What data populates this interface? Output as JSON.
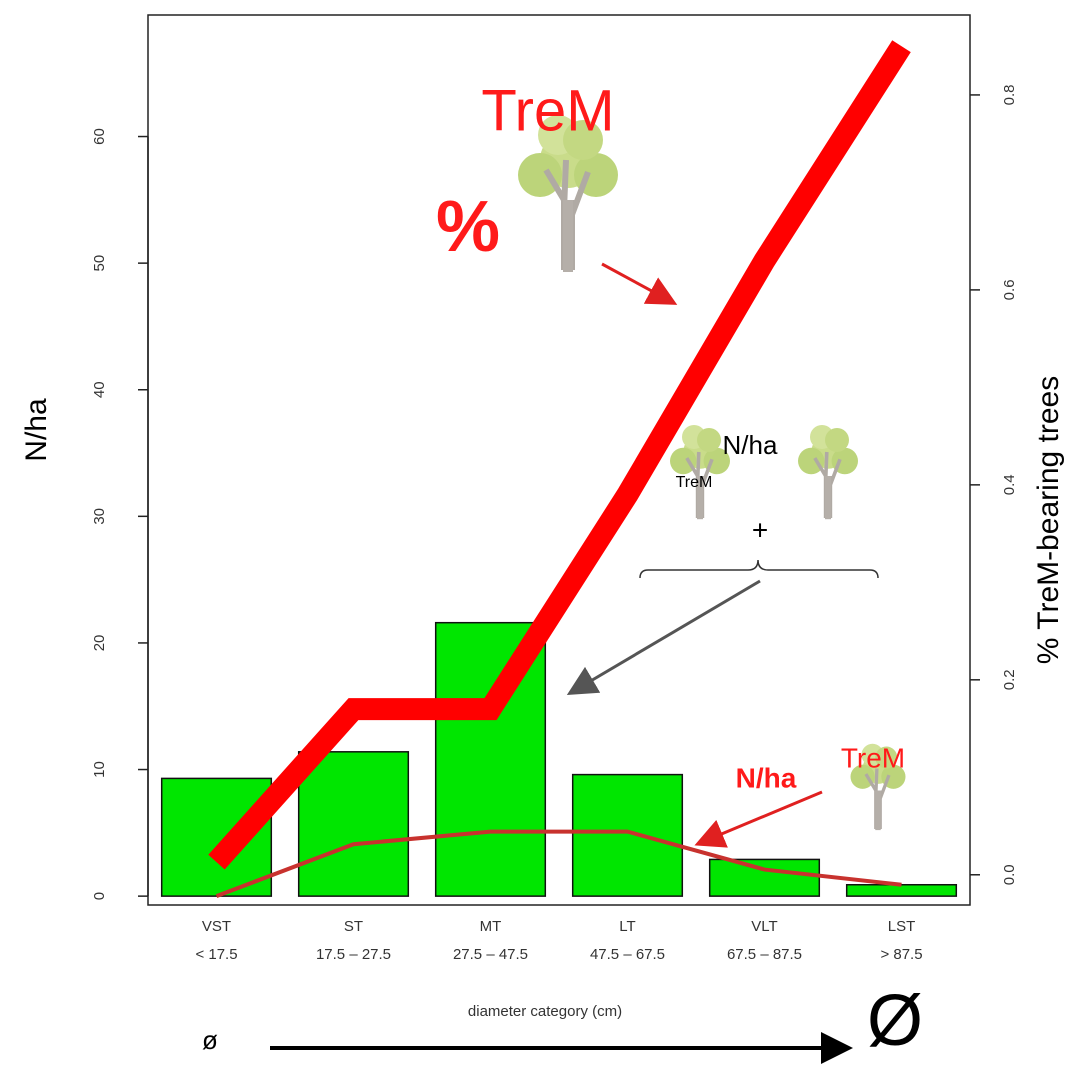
{
  "chart_data": {
    "type": "bar",
    "x_label": "diameter category (cm)",
    "y_label": "N/ha",
    "y2_label": "% TreM-bearing trees",
    "categories": [
      "VST",
      "ST",
      "MT",
      "LT",
      "VLT",
      "LST"
    ],
    "category_ranges": [
      "< 17.5",
      "17.5 – 27.5",
      "27.5 – 47.5",
      "47.5 – 67.5",
      "67.5 – 87.5",
      "> 87.5"
    ],
    "series": [
      {
        "type": "bar",
        "color": "#00e600",
        "values": [
          9.3,
          11.4,
          21.6,
          9.6,
          2.9,
          0.9
        ]
      },
      {
        "type": "line",
        "color": "#c8322e",
        "values": [
          0,
          4.1,
          5.1,
          5.1,
          2.1,
          0.9
        ]
      },
      {
        "type": "line",
        "axis": "y2",
        "color": "#ff0000",
        "values": [
          0.013,
          0.17,
          0.17,
          0.39,
          0.63,
          0.85
        ]
      }
    ],
    "ylim": [
      -0.7,
      69.6
    ],
    "yticks": [
      0,
      10,
      20,
      30,
      40,
      50,
      60
    ],
    "y2lim": [
      -0.031,
      0.882
    ],
    "y2ticks": [
      {
        "value": 0,
        "label": "0.0"
      },
      0.2,
      0.4,
      0.6,
      0.8
    ],
    "annotations": [
      "TreM",
      "%",
      "N/ha",
      "TreM",
      "+",
      "N/ha",
      "TreM",
      "ø",
      "Ø"
    ]
  }
}
